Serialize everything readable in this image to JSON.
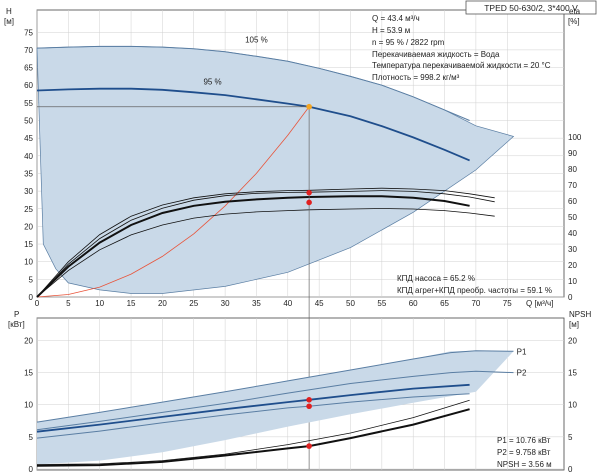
{
  "model_label": "TPED 50-630/2, 3*400 V",
  "colors": {
    "envelope_fill": "#c9d9e8",
    "envelope_edge": "#5a7ea3",
    "curve_dark_blue": "#1f4e8c",
    "curve_black": "#111111",
    "system_curve": "#e8543a",
    "marker_red": "#e02020",
    "marker_orange": "#f5a623",
    "grid": "#d0d0d0"
  },
  "top_info": [
    "Q = 43.4 м³/ч",
    "H = 53.9 м",
    "n = 95 % / 2822 rpm",
    "Перекачиваемая жидкость = Вода",
    "Температура перекачиваемой жидкости = 20 °C",
    "Плотность = 998.2 кг/м³"
  ],
  "efficiency_info": [
    "КПД насоса = 65.2 %",
    "КПД агрег+КПД преобр. частоты = 59.1 %"
  ],
  "bottom_info": [
    "P1 = 10.76 кВт",
    "P2 = 9.758 кВт",
    "NPSH = 3.56 м"
  ],
  "chart_data": [
    {
      "type": "line",
      "panel": "head-efficiency",
      "x_label": "Q [м³/ч]",
      "y_label_left": "H\n[м]",
      "y_label_right": "eta\n[%]",
      "x_ticks": [
        0,
        5,
        10,
        15,
        20,
        25,
        30,
        35,
        40,
        45,
        50,
        55,
        60,
        65,
        70,
        75
      ],
      "y_ticks_left": [
        0,
        5,
        10,
        15,
        20,
        25,
        30,
        35,
        40,
        45,
        50,
        55,
        60,
        65,
        70,
        75
      ],
      "y_ticks_right": [
        0,
        10,
        20,
        30,
        40,
        50,
        60,
        70,
        80,
        90,
        100
      ],
      "xlim": [
        0,
        80
      ],
      "ylim_left": [
        0,
        80
      ],
      "ylim_right": [
        0,
        160
      ],
      "grid": true,
      "curve_labels": [
        "105 %",
        "95 %"
      ],
      "series": [
        {
          "role": "envelope",
          "x": [
            0,
            5,
            10,
            15,
            20,
            25,
            30,
            35,
            40,
            45,
            50,
            55,
            60,
            65,
            70,
            76,
            70,
            60,
            50,
            40,
            30,
            20,
            15,
            10,
            5,
            3,
            1
          ],
          "y": [
            70.5,
            70.8,
            71,
            71,
            70.8,
            70.3,
            69.5,
            68.2,
            66.8,
            64.8,
            62.5,
            60,
            56.7,
            53,
            48.5,
            45.5,
            36,
            24,
            14,
            7,
            3,
            1,
            1,
            2,
            4,
            8,
            15
          ]
        },
        {
          "name": "105 %",
          "x": [
            0,
            5,
            10,
            15,
            20,
            25,
            30,
            35,
            40,
            45,
            50,
            55,
            60,
            65,
            69
          ],
          "y": [
            70.5,
            70.8,
            71,
            71,
            70.8,
            70.3,
            69.5,
            68.2,
            66.8,
            64.8,
            62.5,
            60,
            56.7,
            53,
            50
          ]
        },
        {
          "name": "95 %",
          "x": [
            0,
            5,
            10,
            15,
            20,
            25,
            30,
            35,
            40,
            43.4,
            50,
            55,
            60,
            65,
            69
          ],
          "y": [
            58.5,
            58.8,
            59,
            59,
            58.7,
            58,
            57.2,
            56,
            54.8,
            53.9,
            51.2,
            48.4,
            45.2,
            41.7,
            38.7
          ]
        },
        {
          "role": "system",
          "x": [
            0,
            5,
            10,
            15,
            20,
            25,
            30,
            35,
            40,
            43.4
          ],
          "y": [
            0,
            0.7,
            2.8,
            6.5,
            11.5,
            17.9,
            25.8,
            35,
            45.8,
            53.9
          ]
        },
        {
          "role": "eta-bold",
          "x": [
            0,
            5,
            10,
            15,
            20,
            25,
            30,
            35,
            40,
            43.4,
            50,
            55,
            60,
            65,
            69
          ],
          "y": [
            0,
            19,
            34,
            45,
            52.5,
            57,
            59.5,
            61,
            62,
            62.5,
            63,
            63,
            62,
            60,
            57
          ]
        },
        {
          "role": "eta-thin",
          "x": [
            0,
            5,
            10,
            15,
            20,
            25,
            30,
            35,
            40,
            43.4,
            50,
            55,
            60,
            65,
            69,
            73
          ],
          "y": [
            0,
            20.5,
            36.5,
            48,
            55.5,
            60.5,
            63.3,
            64.8,
            65.4,
            65.5,
            66,
            66.5,
            66,
            64.5,
            62.5,
            59.5
          ]
        },
        {
          "role": "eta-thin",
          "x": [
            0,
            5,
            10,
            15,
            20,
            25,
            30,
            35,
            40,
            43.4,
            50,
            55,
            60,
            65,
            69,
            73
          ],
          "y": [
            0,
            22,
            39,
            50.5,
            57.5,
            62,
            64.5,
            65.8,
            66.5,
            66.7,
            67.5,
            68,
            67.5,
            66.5,
            64.5,
            62
          ]
        },
        {
          "role": "eta-thin",
          "x": [
            0,
            5,
            10,
            15,
            20,
            25,
            30,
            35,
            40,
            43.4,
            50,
            55,
            60,
            65,
            69,
            73
          ],
          "y": [
            0,
            16.5,
            29.5,
            38.8,
            45,
            49.3,
            51.8,
            53.2,
            54,
            54.5,
            55,
            55.3,
            55,
            54,
            52.5,
            50.5
          ]
        }
      ],
      "markers": [
        {
          "x": 43.4,
          "y": 53.9,
          "color": "orange"
        },
        {
          "x": 43.4,
          "y": 65.2,
          "color": "red",
          "axis": "right"
        },
        {
          "x": 43.4,
          "y": 59.1,
          "color": "red",
          "axis": "right"
        }
      ]
    },
    {
      "type": "line",
      "panel": "power-npsh",
      "y_label_left": "P\n[кВт]",
      "y_label_right": "NPSH\n[м]",
      "y_ticks_left": [
        0,
        5,
        10,
        15,
        20
      ],
      "y_ticks_right": [
        0,
        5,
        10,
        15,
        20
      ],
      "ylim": [
        0,
        22.5
      ],
      "series_labels": [
        "P1",
        "P2"
      ],
      "series": [
        {
          "role": "envelope",
          "x": [
            0,
            10,
            20,
            30,
            40,
            50,
            60,
            66,
            70,
            76,
            70,
            60,
            50,
            40,
            30,
            20,
            10,
            0
          ],
          "y": [
            7.3,
            8.8,
            10.4,
            12,
            13.7,
            15.4,
            17.1,
            18.3,
            18.4,
            18.3,
            12,
            10.3,
            8.5,
            6.6,
            4.5,
            2.6,
            1.3,
            0.7
          ]
        },
        {
          "name": "P1",
          "x": [
            0,
            10,
            20,
            30,
            40,
            50,
            60,
            66,
            70,
            76
          ],
          "y": [
            7.3,
            8.8,
            10.4,
            12,
            13.7,
            15.4,
            17.1,
            18.1,
            18.4,
            18.3
          ]
        },
        {
          "name": "P2",
          "x": [
            0,
            10,
            20,
            30,
            40,
            50,
            60,
            66,
            70,
            76
          ],
          "y": [
            6.1,
            7.4,
            8.8,
            10.2,
            11.8,
            13.3,
            14.4,
            15,
            15.2,
            15
          ]
        },
        {
          "role": "P1-95",
          "x": [
            0,
            10,
            20,
            30,
            40,
            43.4,
            50,
            60,
            69
          ],
          "y": [
            5.8,
            6.9,
            8.1,
            9.3,
            10.4,
            10.76,
            11.5,
            12.5,
            13.1
          ]
        },
        {
          "role": "P2-95",
          "x": [
            0,
            10,
            20,
            30,
            40,
            43.4,
            50,
            60,
            69
          ],
          "y": [
            4.8,
            5.9,
            7.2,
            8.4,
            9.5,
            9.758,
            10.4,
            11.2,
            11.7
          ]
        },
        {
          "role": "NPSH-105",
          "x": [
            0,
            10,
            20,
            30,
            40,
            50,
            60,
            69
          ],
          "y": [
            0.7,
            0.8,
            1.3,
            2.3,
            3.8,
            5.6,
            8,
            10.7
          ]
        },
        {
          "role": "NPSH-95",
          "x": [
            0,
            10,
            20,
            30,
            40,
            43.4,
            50,
            60,
            69
          ],
          "y": [
            0.5,
            0.6,
            1.1,
            2.1,
            3.2,
            3.56,
            4.8,
            6.9,
            9.3
          ]
        }
      ],
      "markers": [
        {
          "x": 43.4,
          "y": 10.76,
          "color": "red"
        },
        {
          "x": 43.4,
          "y": 9.758,
          "color": "red"
        },
        {
          "x": 43.4,
          "y": 3.56,
          "color": "red"
        }
      ]
    }
  ]
}
